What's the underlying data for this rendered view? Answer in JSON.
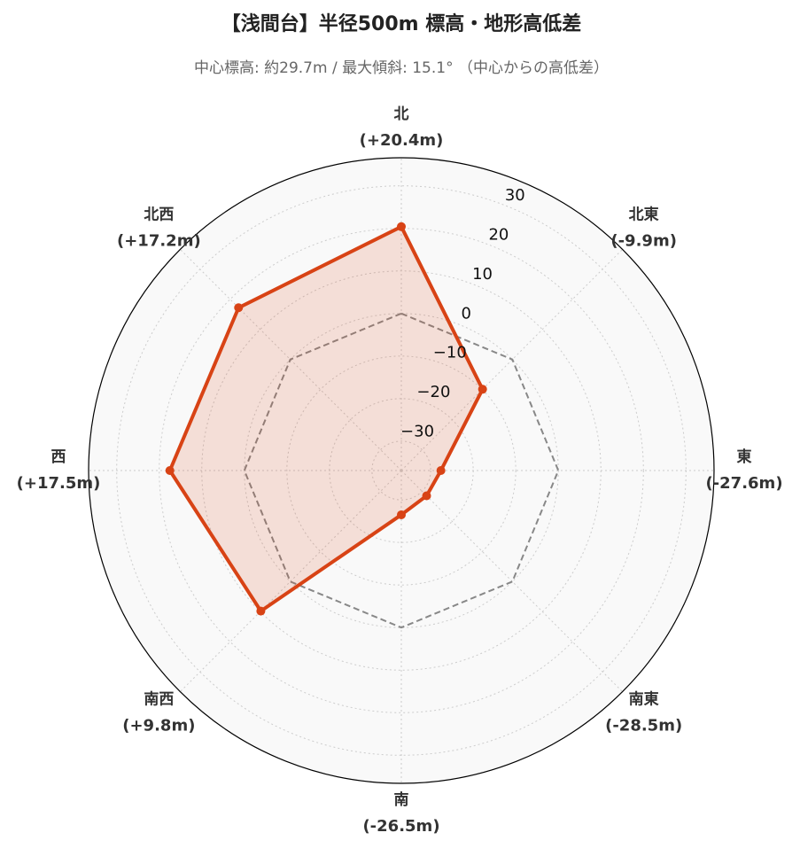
{
  "chart_data": {
    "type": "radar",
    "title": "【浅間台】半径500m 標高・地形高低差",
    "subtitle": "中心標高: 約29.7m / 最大傾斜: 15.1° （中心からの高低差）",
    "categories": [
      "北",
      "北東",
      "東",
      "南東",
      "南",
      "南西",
      "西",
      "北西"
    ],
    "values": [
      20.4,
      -9.9,
      -27.6,
      -28.5,
      -26.5,
      9.8,
      17.5,
      17.2
    ],
    "value_labels": [
      "(+20.4m)",
      "(-9.9m)",
      "(-27.6m)",
      "(-28.5m)",
      "(-26.5m)",
      "(+9.8m)",
      "(+17.5m)",
      "(+17.2m)"
    ],
    "color": "#d84315",
    "ylim": [
      -36.9,
      36.6
    ],
    "yticks": [
      {
        "value": -30,
        "label": "−30"
      },
      {
        "value": -20,
        "label": "−20"
      },
      {
        "value": -10,
        "label": "−10"
      },
      0,
      10,
      20,
      30
    ],
    "reference_line": 0,
    "reference_color": "#888888",
    "grid": true
  }
}
